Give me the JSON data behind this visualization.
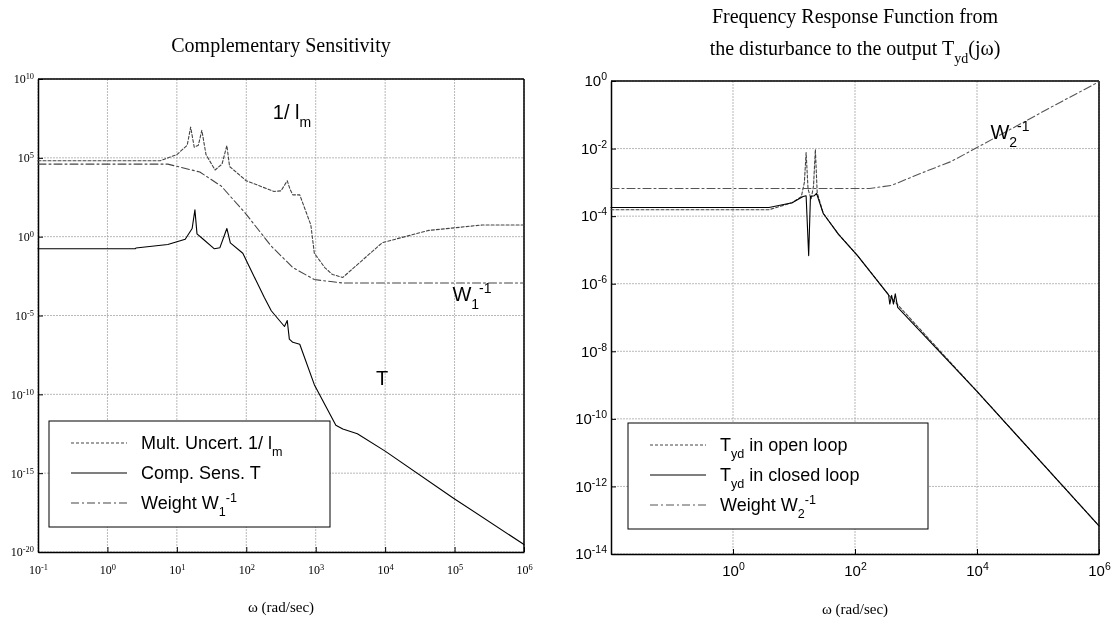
{
  "chart_data": [
    {
      "type": "line",
      "title": "Complementary Sensitivity",
      "xlabel": "ω (rad/sec)",
      "log": "xy",
      "grid": true,
      "legend": "bottom left",
      "xlim": [
        0.1,
        1000000
      ],
      "ylim": [
        1e-20,
        10000000000.0
      ],
      "xticks": [
        {
          "value": 0.1,
          "label": "10$^{-1}$"
        },
        {
          "value": 1,
          "label": "10$^{0}$"
        },
        {
          "value": 10,
          "label": "10$^{1}$"
        },
        {
          "value": 100,
          "label": "10$^{2}$"
        },
        {
          "value": 1000,
          "label": "10$^{3}$"
        },
        {
          "value": 10000,
          "label": "10$^{4}$"
        },
        {
          "value": 100000,
          "label": "10$^{5}$"
        },
        {
          "value": 1000000,
          "label": "10$^{6}$"
        }
      ],
      "yticks": [
        {
          "value": 1e-20,
          "label": "10$^{-20}$"
        },
        {
          "value": 1e-15,
          "label": "10$^{-15}$"
        },
        {
          "value": 1e-10,
          "label": "10$^{-10}$"
        },
        {
          "value": 1e-05,
          "label": "10$^{-5}$"
        },
        {
          "value": 1,
          "label": "10$^{0}$"
        },
        {
          "value": 100000,
          "label": "10$^{5}$"
        },
        {
          "value": 10000000000.0,
          "label": "10$^{10}$"
        }
      ],
      "series": [
        {
          "name": "Mult. Uncert. 1/ l$_{m}$",
          "color": "#444444",
          "line_style": "dotted",
          "x": [
            0.1,
            5.75,
            10,
            14.1,
            15.8,
            17.8,
            20.4,
            22.9,
            26.3,
            35.5,
            44.7,
            52.5,
            57.5,
            100,
            251,
            316,
            389,
            427,
            468,
            589,
            851,
            955,
            1349,
            1738,
            2455,
            9120,
            42660,
            251189,
            1000000
          ],
          "values": [
            66000,
            66000,
            160000,
            630000,
            8900000,
            470000,
            630000,
            5600000,
            160000,
            17000,
            40000,
            600000,
            28000,
            3500,
            740,
            800,
            3500,
            1000,
            450,
            450,
            5.5,
            0.089,
            0.011,
            0.004,
            0.0026,
            0.42,
            2.5,
            5.5,
            5.5
          ]
        },
        {
          "name": "Comp. Sens.  T",
          "color": "#000000",
          "line_style": "solid",
          "x": [
            0.1,
            2.51,
            2.57,
            7.41,
            13.2,
            16.6,
            18.2,
            19.5,
            24,
            34.7,
            41.7,
            52.5,
            58.9,
            89.1,
            112,
            182,
            229,
            355,
            389,
            417,
            468,
            589,
            955,
            1950,
            2455,
            3981,
            10000,
            97700,
            1000000
          ],
          "values": [
            0.17,
            0.17,
            0.19,
            0.32,
            0.69,
            3.3,
            50,
            1.5,
            0.69,
            0.17,
            0.2,
            3.3,
            0.4,
            0.089,
            0.011,
            0.00014,
            2e-05,
            2e-06,
            4.8e-06,
            3.2e-07,
            2e-07,
            1.5e-07,
            4.1e-10,
            1.1e-12,
            6.3e-13,
            3.2e-13,
            2.5e-14,
            2.5e-17,
            3e-20
          ]
        },
        {
          "name": "Weight  W$_{1}$$^{-1}$",
          "color": "#444444",
          "line_style": "dashed",
          "x": [
            0.1,
            7.41,
            21.4,
            43.7,
            100,
            229,
            468,
            955,
            2455,
            1000000
          ],
          "values": [
            40000,
            40000,
            12600,
            1600,
            26,
            0.25,
            0.011,
            0.0019,
            0.00115,
            0.00115
          ]
        }
      ],
      "annotations": [
        "1/ l$_{m}$",
        "W$_{1}$$^{-1}$",
        "T"
      ]
    },
    {
      "type": "line",
      "title": "Frequency Response Function from\nthe disturbance to the output T$_{yd}$(jω)",
      "xlabel": "ω (rad/sec)",
      "log": "xy",
      "grid": true,
      "legend": "bottom left",
      "xlim": [
        0.01,
        1000000
      ],
      "ylim": [
        1e-14,
        1
      ],
      "xticks": [
        {
          "value": 1,
          "label": "10$^{0}$"
        },
        {
          "value": 100,
          "label": "10$^{2}$"
        },
        {
          "value": 10000,
          "label": "10$^{4}$"
        },
        {
          "value": 1000000,
          "label": "10$^{6}$"
        }
      ],
      "yticks": [
        {
          "value": 1e-14,
          "label": "10$^{-14}$"
        },
        {
          "value": 1e-12,
          "label": "10$^{-12}$"
        },
        {
          "value": 1e-10,
          "label": "10$^{-10}$"
        },
        {
          "value": 1e-08,
          "label": "10$^{-8}$"
        },
        {
          "value": 1e-06,
          "label": "10$^{-6}$"
        },
        {
          "value": 0.0001,
          "label": "10$^{-4}$"
        },
        {
          "value": 0.01,
          "label": "10$^{-2}$"
        },
        {
          "value": 1,
          "label": "10$^{0}$"
        }
      ],
      "series": [
        {
          "name": "T$_{yd}$  in open loop",
          "color": "#444444",
          "line_style": "dotted",
          "x": [
            0.01,
            3.89,
            9.33,
            13.2,
            14.8,
            15.8,
            17,
            19.1,
            20.9,
            22.4,
            24,
            30.2,
            53.7,
            110,
            355,
            10000,
            1000000
          ],
          "values": [
            0.000155,
            0.000155,
            0.00025,
            0.00038,
            0.001,
            0.0076,
            0.00063,
            0.00032,
            0.00079,
            0.0095,
            0.0005,
            0.00012,
            2.9e-05,
            6.8e-06,
            4.7e-07,
            6.5e-10,
            6.8e-14
          ]
        },
        {
          "name": "T$_{yd}$  in closed loop",
          "color": "#000000",
          "line_style": "solid",
          "x": [
            0.01,
            3.89,
            9.33,
            14.1,
            15.8,
            17.4,
            18.6,
            21.4,
            23.4,
            30.2,
            53.7,
            110,
            355,
            372,
            398,
            427,
            457,
            501,
            10000,
            1000000
          ],
          "values": [
            0.00018,
            0.00018,
            0.00025,
            0.00038,
            0.0004,
            6.8e-06,
            0.00038,
            0.0004,
            0.00047,
            0.00012,
            2.9e-05,
            6.8e-06,
            4.7e-07,
            2.5e-07,
            4.5e-07,
            2.5e-07,
            5e-07,
            2e-07,
            6.5e-10,
            6.8e-14
          ]
        },
        {
          "name": "Weight  W$_{2}$$^{-1}$",
          "color": "#555555",
          "line_style": "dashed",
          "x": [
            0.01,
            174,
            398,
            1150,
            3720,
            10000,
            182000,
            1000000
          ],
          "values": [
            0.00066,
            0.00066,
            0.00081,
            0.0018,
            0.0041,
            0.0107,
            0.186,
            0.95
          ]
        }
      ],
      "annotations": [
        "W$_{2}$$^{-1}$"
      ]
    }
  ]
}
